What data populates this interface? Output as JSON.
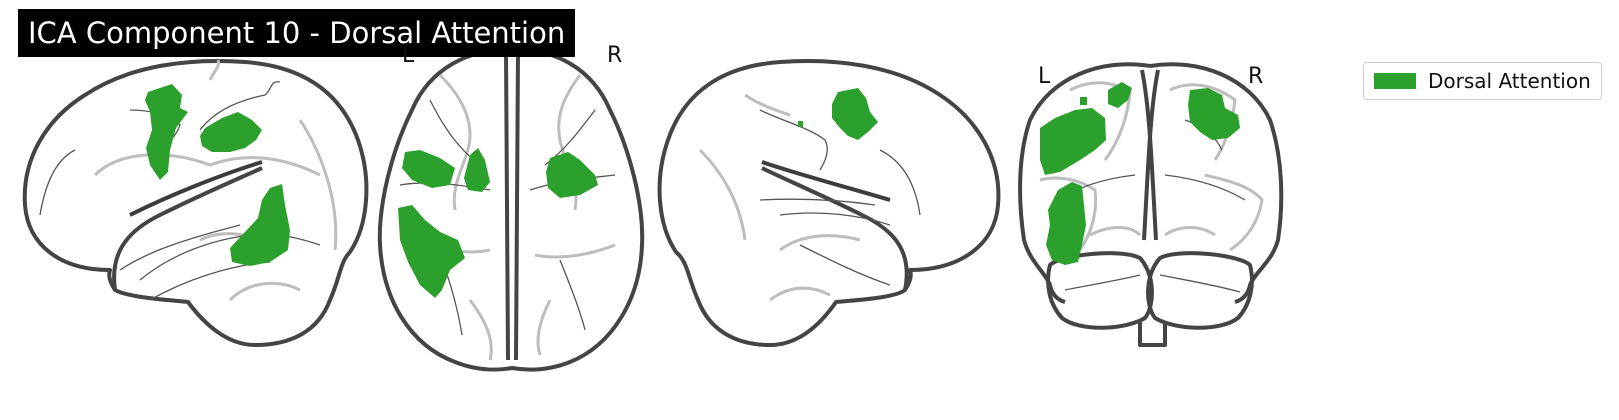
{
  "figure": {
    "title": "ICA Component 10 - Dorsal Attention",
    "views": [
      {
        "name": "left-sagittal",
        "labels": []
      },
      {
        "name": "axial",
        "labels": [
          "L",
          "R"
        ]
      },
      {
        "name": "right-sagittal",
        "labels": []
      },
      {
        "name": "coronal",
        "labels": [
          "L",
          "R"
        ]
      }
    ],
    "legend": {
      "label": "Dorsal Attention",
      "color": "#2ca02c"
    },
    "colors": {
      "activation": "#2ca02c",
      "outline": "#444444",
      "sulci": "#bdbdbd",
      "title_bg": "#000000",
      "title_fg": "#ffffff"
    }
  }
}
